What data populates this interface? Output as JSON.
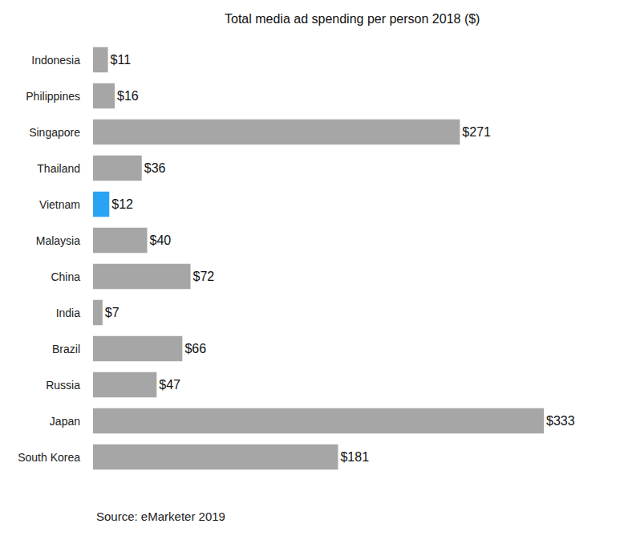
{
  "chart_data": {
    "type": "bar",
    "orientation": "horizontal",
    "title": "Total media ad spending per person 2018 ($)",
    "annotation": "Source: eMarketer 2019",
    "categories": [
      "Indonesia",
      "Philippines",
      "Singapore",
      "Thailand",
      "Vietnam",
      "Malaysia",
      "China",
      "India",
      "Brazil",
      "Russia",
      "Japan",
      "South Korea"
    ],
    "values": [
      11,
      16,
      271,
      36,
      12,
      40,
      72,
      7,
      66,
      47,
      333,
      181
    ],
    "value_labels": [
      "$11",
      "$16",
      "$271",
      "$36",
      "$12",
      "$40",
      "$72",
      "$7",
      "$66",
      "$47",
      "$333",
      "$181"
    ],
    "colors": [
      "#a6a6a6",
      "#a6a6a6",
      "#a6a6a6",
      "#a6a6a6",
      "#2aa3f4",
      "#a6a6a6",
      "#a6a6a6",
      "#a6a6a6",
      "#a6a6a6",
      "#a6a6a6",
      "#a6a6a6",
      "#a6a6a6"
    ],
    "data_labels": true,
    "tick_labels": "y",
    "grid": false
  }
}
